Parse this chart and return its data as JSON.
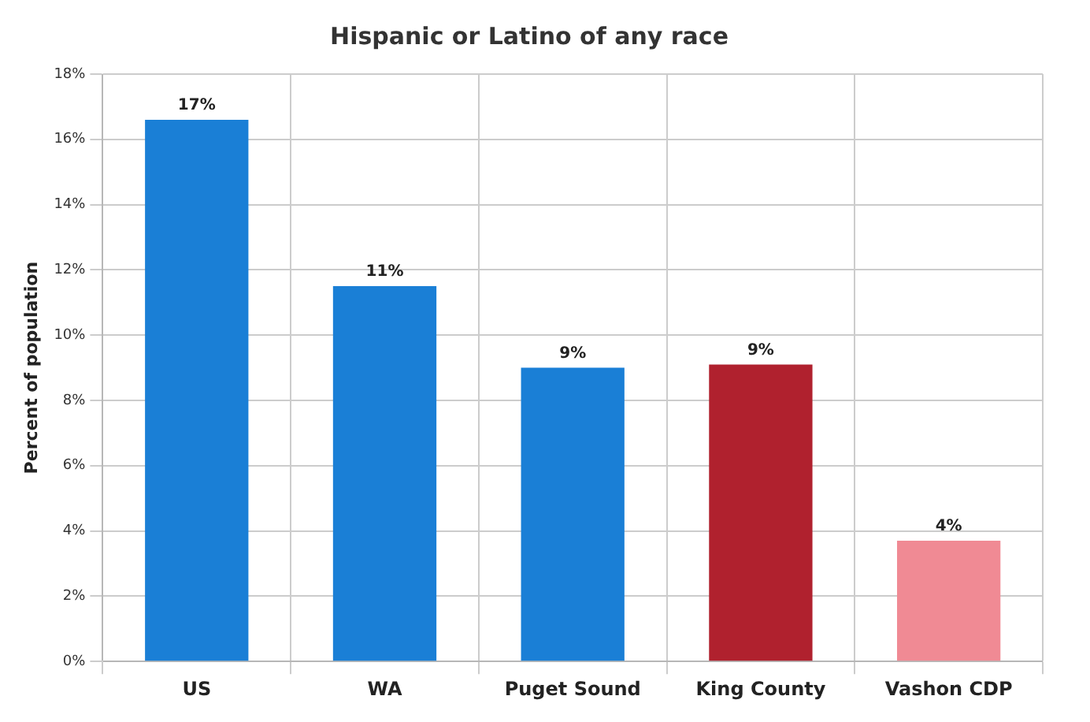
{
  "chart_data": {
    "type": "bar",
    "title": "Hispanic or Latino of any race",
    "ylabel": "Percent of population",
    "categories": [
      "US",
      "WA",
      "Puget Sound",
      "King County",
      "Vashon CDP"
    ],
    "values": [
      16.6,
      11.5,
      9.0,
      9.1,
      3.7
    ],
    "colors": [
      "#1a7fd6",
      "#1a7fd6",
      "#1a7fd6",
      "#b0212e",
      "#f08a94"
    ],
    "value_labels": [
      "17%",
      "11%",
      "9%",
      "9%",
      "4%"
    ],
    "ylim": [
      0,
      18
    ],
    "yticks": [
      {
        "value": 0,
        "label": "0%"
      },
      {
        "value": 2,
        "label": "2%"
      },
      {
        "value": 4,
        "label": "4%"
      },
      {
        "value": 6,
        "label": "6%"
      },
      {
        "value": 8,
        "label": "8%"
      },
      {
        "value": 10,
        "label": "10%"
      },
      {
        "value": 12,
        "label": "12%"
      },
      {
        "value": 14,
        "label": "14%"
      },
      {
        "value": 16,
        "label": "16%"
      },
      {
        "value": 18,
        "label": "18%"
      }
    ],
    "grid": true
  }
}
